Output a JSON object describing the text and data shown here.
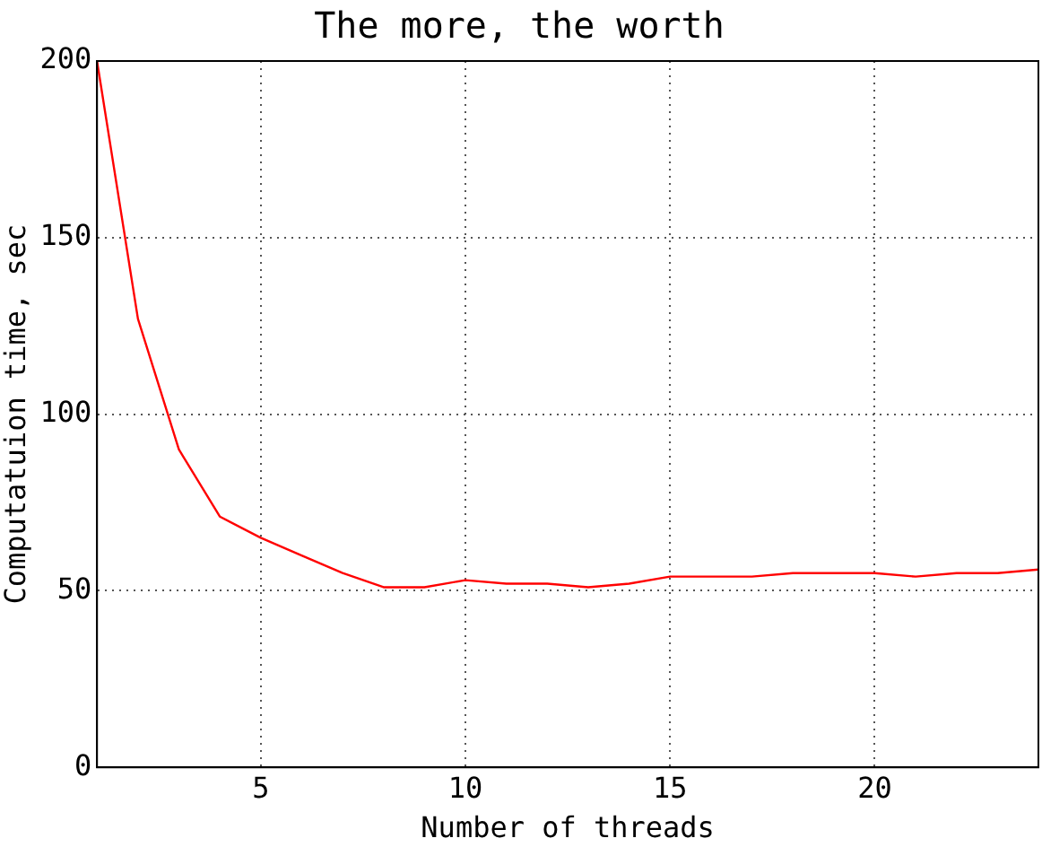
{
  "chart_data": {
    "type": "line",
    "title": "The more, the worth",
    "xlabel": "Number of threads",
    "ylabel": "Computatuion time, sec",
    "x": [
      1,
      2,
      3,
      4,
      5,
      6,
      7,
      8,
      9,
      10,
      11,
      12,
      13,
      14,
      15,
      16,
      17,
      18,
      19,
      20,
      21,
      22,
      23,
      24
    ],
    "series": [
      {
        "color": "#ff0000",
        "values": [
          200,
          127,
          90,
          71,
          65,
          60,
          55,
          51,
          51,
          53,
          52,
          52,
          51,
          52,
          54,
          54,
          54,
          55,
          55,
          55,
          54,
          55,
          55,
          56
        ]
      }
    ],
    "xlim": [
      1,
      24
    ],
    "xticks": [
      5,
      10,
      15,
      20
    ],
    "ylim": [
      0,
      200
    ],
    "yticks": [
      0,
      50,
      100,
      150,
      200
    ],
    "grid": true,
    "legend": false,
    "marker": "none",
    "line_style": "solid"
  }
}
